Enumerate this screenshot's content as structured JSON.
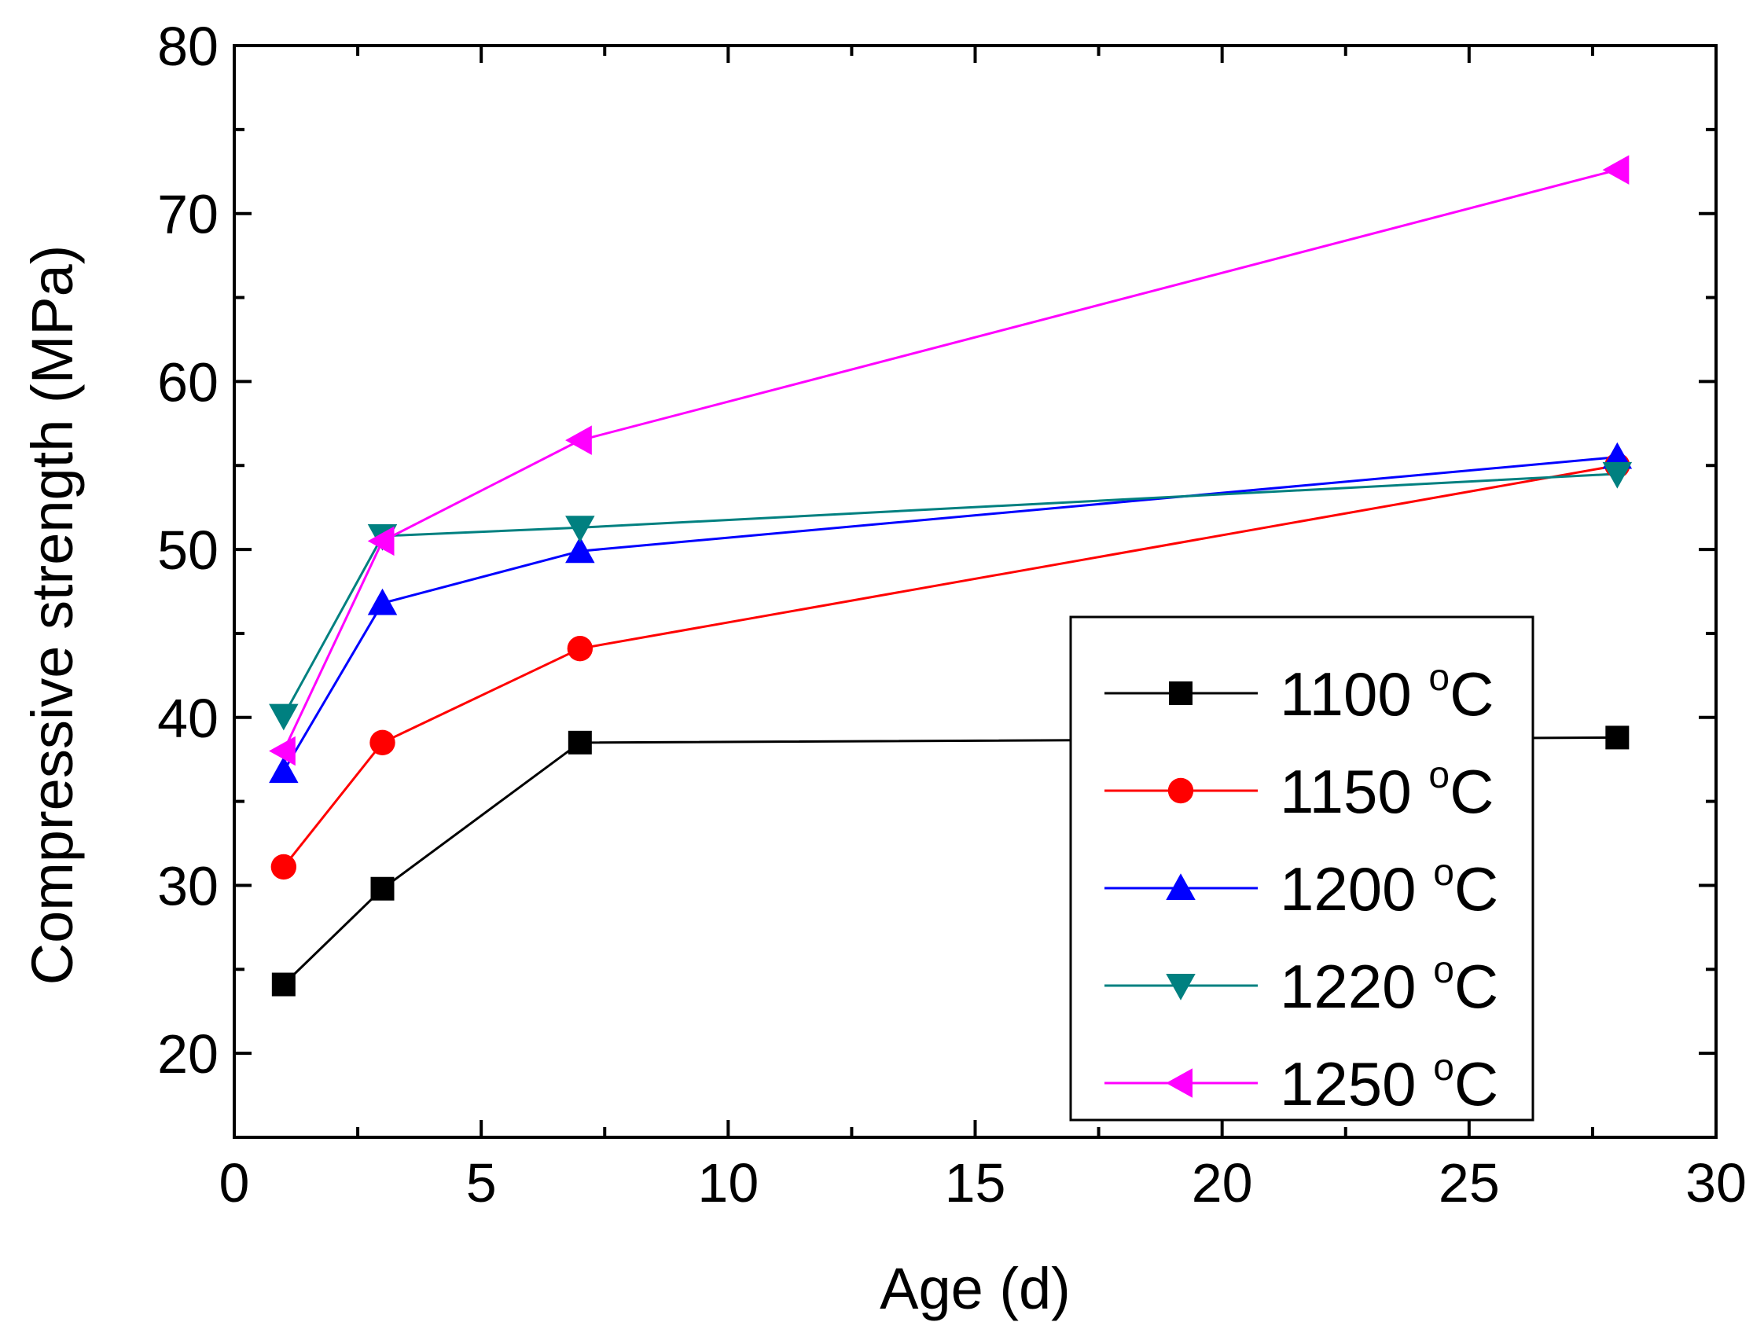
{
  "chart_data": {
    "type": "line",
    "xlabel": "Age (d)",
    "ylabel": "Compressive strength (MPa)",
    "xlim": [
      0,
      30
    ],
    "ylim": [
      15,
      80
    ],
    "xticks": [
      0,
      5,
      10,
      15,
      20,
      25,
      30
    ],
    "yticks": [
      20,
      30,
      40,
      50,
      60,
      70,
      80
    ],
    "grid": false,
    "legend_position": "bottom-right",
    "legend_unit": "oC",
    "series": [
      {
        "name": "1100",
        "color": "#000000",
        "marker": "square",
        "x": [
          1,
          3,
          7,
          28
        ],
        "y": [
          24.1,
          29.8,
          38.5,
          38.8
        ]
      },
      {
        "name": "1150",
        "color": "#ff0000",
        "marker": "circle",
        "x": [
          1,
          3,
          7,
          28
        ],
        "y": [
          31.1,
          38.5,
          44.1,
          55.0
        ]
      },
      {
        "name": "1200",
        "color": "#0000ff",
        "marker": "triangle-up",
        "x": [
          1,
          3,
          7,
          28
        ],
        "y": [
          36.8,
          46.8,
          49.9,
          55.5
        ]
      },
      {
        "name": "1220",
        "color": "#008080",
        "marker": "triangle-down",
        "x": [
          1,
          3,
          7,
          28
        ],
        "y": [
          40.1,
          50.8,
          51.3,
          54.5
        ]
      },
      {
        "name": "1250",
        "color": "#ff00ff",
        "marker": "triangle-left",
        "x": [
          1,
          3,
          7,
          28
        ],
        "y": [
          38.0,
          50.5,
          56.5,
          72.6
        ]
      }
    ]
  }
}
